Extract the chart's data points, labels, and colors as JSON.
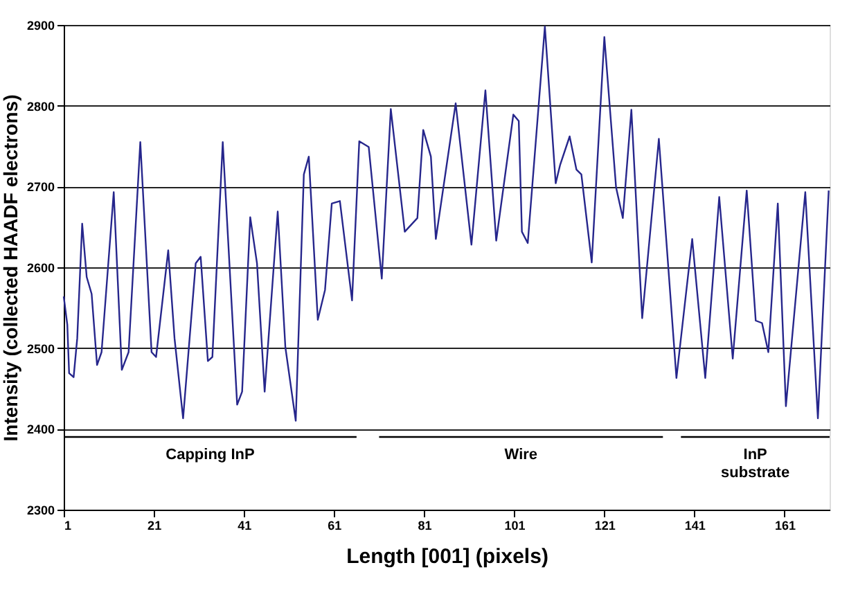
{
  "chart_data": {
    "type": "line",
    "xlabel": "Length [001] (pixels)",
    "ylabel": "Intensity (collected HAADF electrons)",
    "xlim": [
      1,
      171
    ],
    "xticks": [
      1,
      21,
      41,
      61,
      81,
      101,
      121,
      141,
      161
    ],
    "ylim": [
      2300,
      2900
    ],
    "yticks": [
      2300,
      2400,
      2500,
      2600,
      2700,
      2800,
      2900
    ],
    "grid": "y",
    "marker": "none",
    "line_style": "solid",
    "series": [
      {
        "color": "#26268c",
        "x": [
          1,
          1.8,
          2.2,
          3.2,
          4,
          5.1,
          6.1,
          7.2,
          8.4,
          9.4,
          12.1,
          13.9,
          15.4,
          18,
          20.5,
          21.5,
          24.2,
          25.6,
          27.5,
          30.3,
          31.4,
          33,
          34,
          36.3,
          39.5,
          40.6,
          42.4,
          43.9,
          45.6,
          48.5,
          50.2,
          52.5,
          54.3,
          55.4,
          57.4,
          59,
          60.5,
          62.3,
          65,
          66.6,
          68.7,
          71.6,
          73.6,
          76.7,
          79.5,
          80.8,
          82.5,
          83.6,
          88,
          91.5,
          94.6,
          97,
          100.8,
          102,
          102.7,
          104,
          107.8,
          110.2,
          111.2,
          113.3,
          114.8,
          115.9,
          118.2,
          121,
          123.6,
          125.1,
          127,
          129.4,
          133.1,
          137,
          140.5,
          143.4,
          146.5,
          149.5,
          152.6,
          154.6,
          156,
          157.4,
          159.5,
          161.3,
          165.6,
          168.4,
          170.8
        ],
        "values": [
          2564,
          2529,
          2469,
          2464,
          2512,
          2654,
          2588,
          2567,
          2479,
          2495,
          2693,
          2473,
          2495,
          2755,
          2495,
          2489,
          2621,
          2512,
          2413,
          2605,
          2613,
          2484,
          2489,
          2755,
          2430,
          2446,
          2662,
          2605,
          2446,
          2669,
          2501,
          2410,
          2715,
          2737,
          2535,
          2572,
          2679,
          2682,
          2559,
          2756,
          2749,
          2586,
          2796,
          2644,
          2661,
          2770,
          2737,
          2635,
          2803,
          2628,
          2819,
          2633,
          2789,
          2781,
          2644,
          2630,
          2898,
          2704,
          2727,
          2762,
          2721,
          2715,
          2606,
          2885,
          2699,
          2661,
          2795,
          2537,
          2759,
          2463,
          2635,
          2463,
          2687,
          2487,
          2695,
          2534,
          2531,
          2495,
          2679,
          2428,
          2693,
          2413,
          2695
        ]
      },
      {
        "type": "line",
        "color": "#000000",
        "x": [
          1,
          66
        ],
        "values": [
          2390,
          2390
        ]
      },
      {
        "type": "line",
        "color": "#000000",
        "x": [
          71,
          134
        ],
        "values": [
          2390,
          2390
        ]
      },
      {
        "type": "line",
        "color": "#000000",
        "x": [
          138,
          171
        ],
        "values": [
          2390,
          2390
        ]
      }
    ],
    "annotations": [
      "Capping InP",
      "Wire",
      "InP substrate"
    ]
  }
}
